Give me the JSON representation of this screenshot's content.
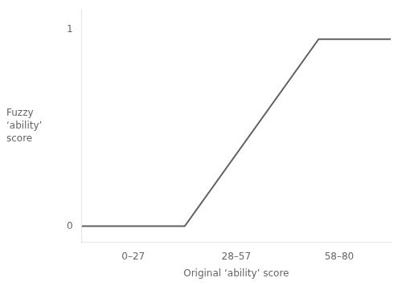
{
  "chart_data": {
    "type": "line",
    "x": [
      0,
      1.0,
      2.3,
      3.0
    ],
    "values": [
      0.0,
      0.0,
      0.95,
      0.95
    ],
    "color": "#606060",
    "xlim": [
      0.0,
      3.0
    ],
    "xticks": [
      {
        "value": 0.5,
        "label": "0–27"
      },
      {
        "value": 1.5,
        "label": "28–57"
      },
      {
        "value": 2.5,
        "label": "58–80"
      }
    ],
    "ylim": [
      -0.08,
      1.1
    ],
    "yticks": [
      0,
      1
    ],
    "xlabel": "Original ‘ability’ score",
    "ylabel": "Fuzzy\n‘ability’\nscore",
    "grid": false
  }
}
